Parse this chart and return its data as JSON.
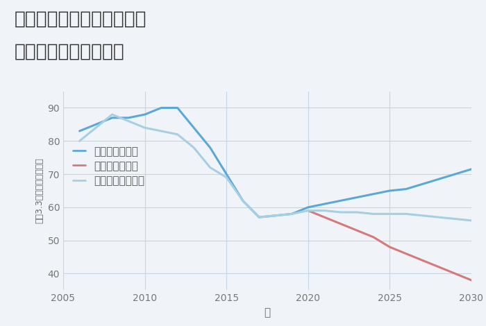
{
  "title_line1": "岐阜県海津市南濃町庭田の",
  "title_line2": "中古戸建ての価格推移",
  "xlabel": "年",
  "ylabel": "坪（3.3㎡）単価（万円）",
  "background_color": "#f0f4f8",
  "plot_background": "#f0f4f8",
  "grid_color": "#c5d5e5",
  "good": {
    "label": "グッドシナリオ",
    "color": "#5aa8d8",
    "x": [
      2006,
      2007,
      2008,
      2009,
      2010,
      2011,
      2012,
      2013,
      2014,
      2015,
      2016,
      2017,
      2018,
      2019,
      2020,
      2021,
      2022,
      2023,
      2024,
      2025,
      2026,
      2027,
      2028,
      2029,
      2030
    ],
    "y": [
      83,
      85,
      87,
      87,
      88,
      90,
      90,
      84,
      78,
      70,
      62,
      57,
      57.5,
      58,
      60,
      61,
      62,
      63,
      64,
      65,
      65.5,
      67,
      68.5,
      70,
      71.5
    ]
  },
  "bad": {
    "label": "バッドシナリオ",
    "color": "#d47a7a",
    "x": [
      2020,
      2021,
      2022,
      2023,
      2024,
      2025,
      2026,
      2027,
      2028,
      2029,
      2030
    ],
    "y": [
      59,
      57,
      55,
      53,
      51,
      48,
      46,
      44,
      42,
      40,
      38
    ]
  },
  "normal": {
    "label": "ノーマルシナリオ",
    "color": "#a8cfe0",
    "x": [
      2006,
      2007,
      2008,
      2009,
      2010,
      2011,
      2012,
      2013,
      2014,
      2015,
      2016,
      2017,
      2018,
      2019,
      2020,
      2021,
      2022,
      2023,
      2024,
      2025,
      2026,
      2027,
      2028,
      2029,
      2030
    ],
    "y": [
      80,
      84,
      88,
      86,
      84,
      83,
      82,
      78,
      72,
      69,
      62,
      57,
      57.5,
      58,
      59,
      59,
      58.5,
      58.5,
      58,
      58,
      58,
      57.5,
      57,
      56.5,
      56
    ]
  },
  "xlim": [
    2005,
    2030
  ],
  "ylim": [
    35,
    95
  ],
  "xticks": [
    2005,
    2010,
    2015,
    2020,
    2025,
    2030
  ],
  "yticks": [
    40,
    50,
    60,
    70,
    80,
    90
  ],
  "title_fontsize": 19,
  "axis_fontsize": 11,
  "legend_fontsize": 11,
  "tick_fontsize": 10,
  "line_width": 2.2
}
